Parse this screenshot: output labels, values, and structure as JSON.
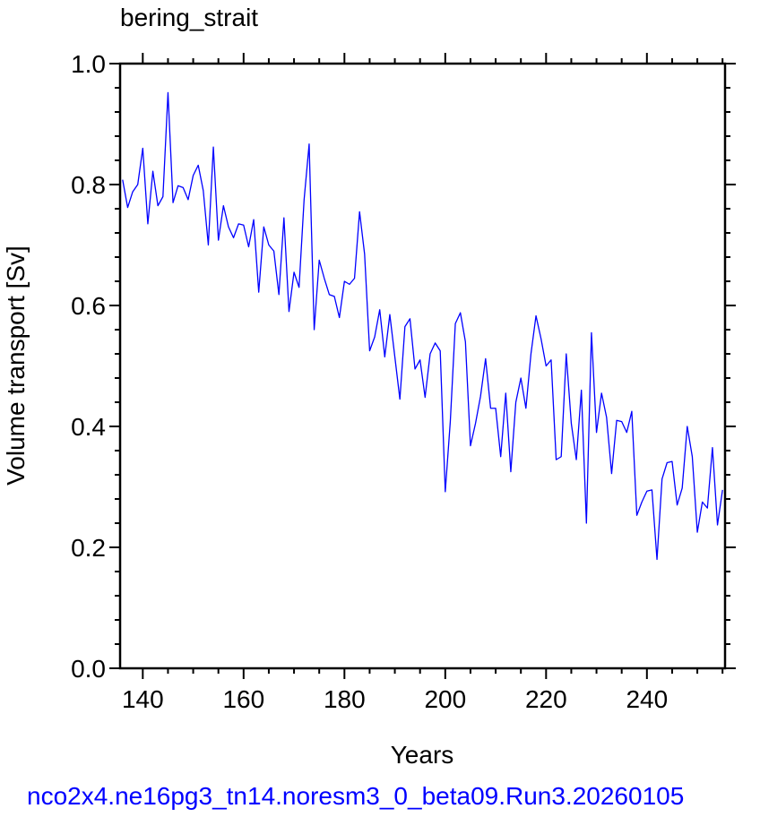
{
  "chart_data": {
    "type": "line",
    "title": "bering_strait",
    "xlabel": "Years",
    "ylabel": "Volume transport [Sv]",
    "xlim": [
      135.5,
      255.5
    ],
    "ylim": [
      0.0,
      1.0
    ],
    "xticks": [
      140,
      160,
      180,
      200,
      220,
      240
    ],
    "xtick_labels": [
      "140",
      "160",
      "180",
      "200",
      "220",
      "240"
    ],
    "yticks": [
      0.0,
      0.2,
      0.4,
      0.6,
      0.8,
      1.0
    ],
    "ytick_labels": [
      "0.0",
      "0.2",
      "0.4",
      "0.6",
      "0.8",
      "1.0"
    ],
    "grid": false,
    "series": [
      {
        "color": "#0000ff",
        "x": [
          136,
          137,
          138,
          139,
          140,
          141,
          142,
          143,
          144,
          145,
          146,
          147,
          148,
          149,
          150,
          151,
          152,
          153,
          154,
          155,
          156,
          157,
          158,
          159,
          160,
          161,
          162,
          163,
          164,
          165,
          166,
          167,
          168,
          169,
          170,
          171,
          172,
          173,
          174,
          175,
          176,
          177,
          178,
          179,
          180,
          181,
          182,
          183,
          184,
          185,
          186,
          187,
          188,
          189,
          190,
          191,
          192,
          193,
          194,
          195,
          196,
          197,
          198,
          199,
          200,
          201,
          202,
          203,
          204,
          205,
          206,
          207,
          208,
          209,
          210,
          211,
          212,
          213,
          214,
          215,
          216,
          217,
          218,
          219,
          220,
          221,
          222,
          223,
          224,
          225,
          226,
          227,
          228,
          229,
          230,
          231,
          232,
          233,
          234,
          235,
          236,
          237,
          238,
          239,
          240,
          241,
          242,
          243,
          244,
          245,
          246,
          247,
          248,
          249,
          250,
          251,
          252,
          253,
          254,
          255
        ],
        "y": [
          0.808,
          0.762,
          0.788,
          0.8,
          0.86,
          0.735,
          0.822,
          0.765,
          0.78,
          0.952,
          0.77,
          0.798,
          0.795,
          0.775,
          0.815,
          0.832,
          0.79,
          0.7,
          0.862,
          0.708,
          0.765,
          0.73,
          0.712,
          0.735,
          0.733,
          0.697,
          0.742,
          0.622,
          0.73,
          0.7,
          0.69,
          0.618,
          0.745,
          0.59,
          0.655,
          0.63,
          0.775,
          0.867,
          0.56,
          0.675,
          0.645,
          0.618,
          0.615,
          0.58,
          0.64,
          0.635,
          0.645,
          0.755,
          0.685,
          0.525,
          0.548,
          0.593,
          0.515,
          0.585,
          0.515,
          0.445,
          0.565,
          0.578,
          0.495,
          0.51,
          0.448,
          0.52,
          0.538,
          0.525,
          0.292,
          0.408,
          0.57,
          0.588,
          0.54,
          0.368,
          0.405,
          0.45,
          0.512,
          0.43,
          0.43,
          0.35,
          0.455,
          0.325,
          0.44,
          0.48,
          0.43,
          0.52,
          0.583,
          0.545,
          0.5,
          0.51,
          0.345,
          0.35,
          0.52,
          0.405,
          0.345,
          0.46,
          0.24,
          0.555,
          0.39,
          0.455,
          0.415,
          0.322,
          0.41,
          0.408,
          0.39,
          0.425,
          0.253,
          0.275,
          0.293,
          0.295,
          0.18,
          0.313,
          0.34,
          0.342,
          0.27,
          0.298,
          0.4,
          0.35,
          0.225,
          0.275,
          0.265,
          0.365,
          0.237,
          0.295
        ]
      }
    ]
  },
  "footer": "nco2x4.ne16pg3_tn14.noresm3_0_beta09.Run3.20260105"
}
